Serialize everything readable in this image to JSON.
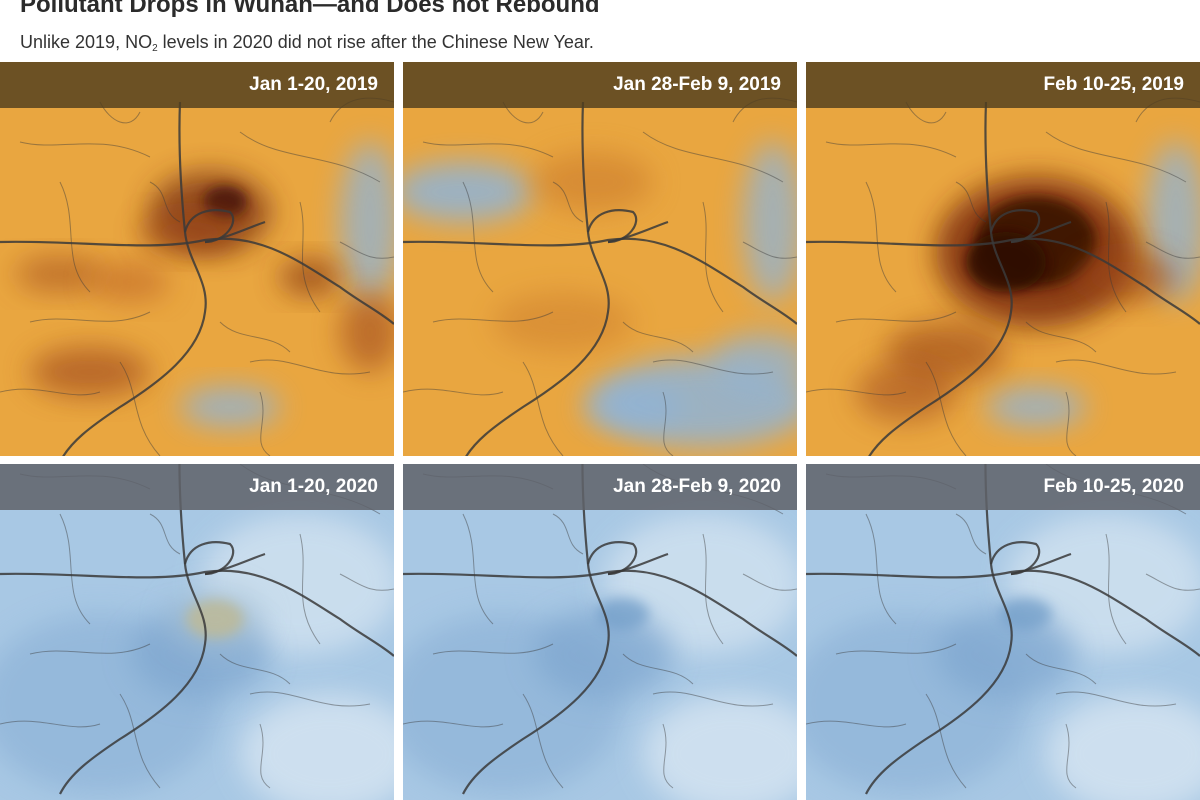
{
  "header": {
    "title": "Pollutant Drops in Wuhan—and Does not Rebound",
    "subtitle_before": "Unlike 2019, NO",
    "subtitle_sub": "2",
    "subtitle_after": " levels in 2020 did not rise after the Chinese New Year."
  },
  "panels": [
    {
      "label": "Jan 1-20, 2019",
      "year": "2019",
      "level": "high"
    },
    {
      "label": "Jan 28-Feb 9, 2019",
      "year": "2019",
      "level": "medium"
    },
    {
      "label": "Feb 10-25, 2019",
      "year": "2019",
      "level": "very-high"
    },
    {
      "label": "Jan 1-20, 2020",
      "year": "2020",
      "level": "low-with-hotspot"
    },
    {
      "label": "Jan 28-Feb 9, 2020",
      "year": "2020",
      "level": "low"
    },
    {
      "label": "Feb 10-25, 2020",
      "year": "2020",
      "level": "low"
    }
  ],
  "colors": {
    "orange_base": "#e9a640",
    "blue_base": "#a8c8e4",
    "dark_hotspot": "#5a1e0c",
    "road": "#3a3a3a"
  }
}
